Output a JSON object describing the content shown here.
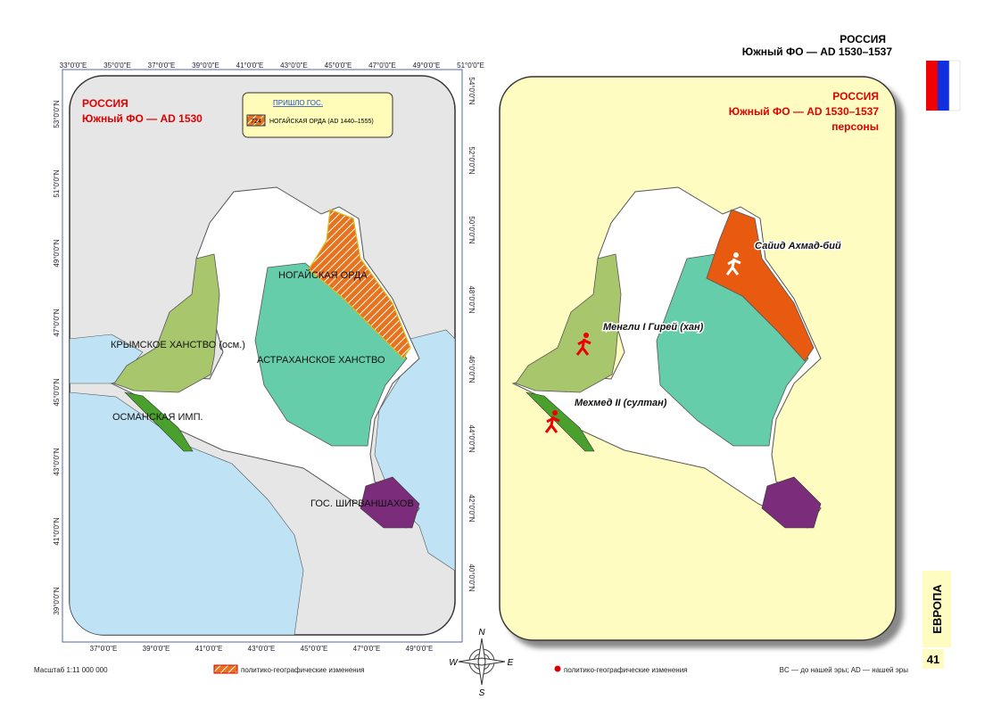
{
  "header": {
    "title": "РОССИЯ",
    "subtitle": "Южный ФО — AD 1530–1537"
  },
  "left_map": {
    "title": "РОССИЯ",
    "subtitle": "Южный ФО —  AD 1530",
    "legend": {
      "heading": "ПРИШЛО ГОС.",
      "code": "724",
      "label": "НОГАЙСКАЯ ОРДА (AD 1440–1555)"
    },
    "regions": [
      "НОГАЙСКАЯ ОРДА",
      "КРЫМСКОЕ ХАНСТВО (осм.)",
      "АСТРАХАНСКОЕ ХАНСТВО",
      "ОСМАНСКАЯ ИМП.",
      "ГОС. ШИРВАНШАХОВ"
    ],
    "top_ticks": [
      "33°0'0\"E",
      "35°0'0\"E",
      "37°0'0\"E",
      "39°0'0\"E",
      "41°0'0\"E",
      "43°0'0\"E",
      "45°0'0\"E",
      "47°0'0\"E",
      "49°0'0\"E",
      "51°0'0\"E"
    ],
    "bottom_ticks": [
      "37°0'0\"E",
      "39°0'0\"E",
      "41°0'0\"E",
      "43°0'0\"E",
      "45°0'0\"E",
      "47°0'0\"E",
      "49°0'0\"E"
    ],
    "left_ticks": [
      "53°0'0\"N",
      "51°0'0\"N",
      "49°0'0\"N",
      "47°0'0\"N",
      "45°0'0\"N",
      "43°0'0\"N",
      "41°0'0\"N",
      "39°0'0\"N"
    ],
    "right_ticks": [
      "54°0'0\"N",
      "52°0'0\"N",
      "50°0'0\"N",
      "48°0'0\"N",
      "46°0'0\"N",
      "44°0'0\"N",
      "42°0'0\"N",
      "40°0'0\"N"
    ]
  },
  "right_map": {
    "title": "РОССИЯ",
    "subtitle": "Южный ФО —  AD 1530–1537",
    "note": "персоны",
    "persons": [
      "Сайид Ахмад-бий",
      "Менгли I Гирей (хан)",
      "Мехмед II (султан)"
    ]
  },
  "compass": [
    "N",
    "W",
    "E",
    "S"
  ],
  "footer": {
    "scale": "Масштаб 1:11 000 000",
    "legend_hatch": "политико-географические изменения",
    "legend_dot": "политико-географические изменения",
    "era_note": "BC — до нашей эры; AD — нашей эры"
  },
  "side": {
    "region": "ЕВРОПА",
    "page": "41"
  }
}
